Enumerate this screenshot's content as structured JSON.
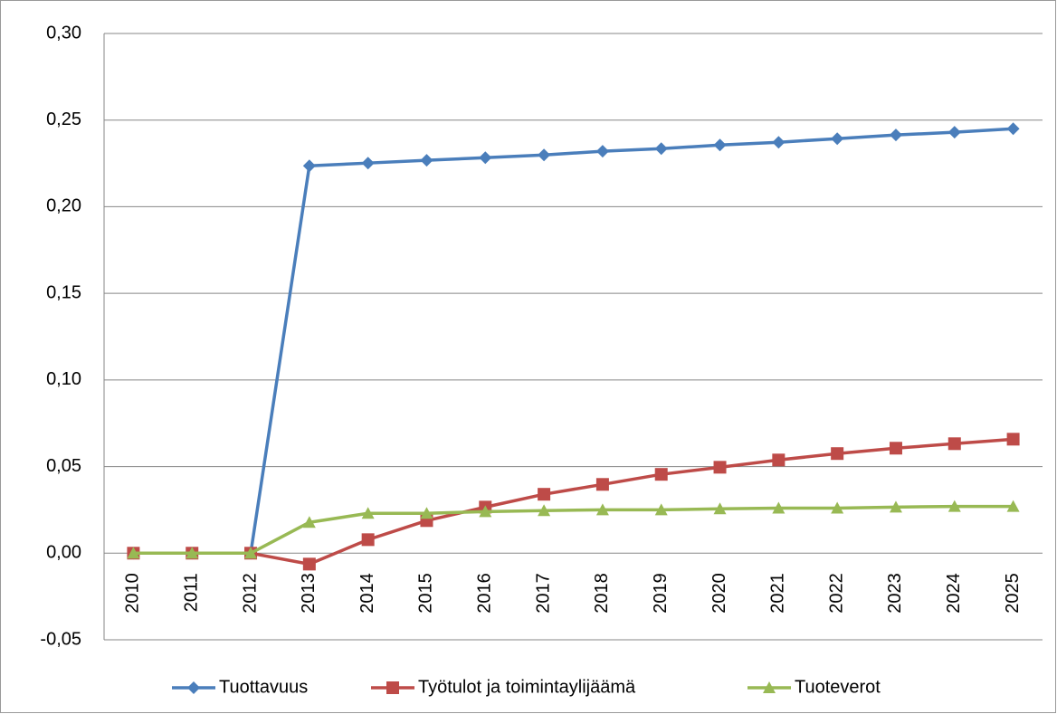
{
  "chart_data": {
    "type": "line",
    "categories": [
      "2010",
      "2011",
      "2012",
      "2013",
      "2014",
      "2015",
      "2016",
      "2017",
      "2018",
      "2019",
      "2020",
      "2021",
      "2022",
      "2023",
      "2024",
      "2025"
    ],
    "series": [
      {
        "name": "Tuottavuus",
        "color": "#4a7ebb",
        "marker": "diamond",
        "values": [
          0,
          0,
          0,
          0.2236,
          0.2252,
          0.2268,
          0.2283,
          0.2299,
          0.232,
          0.2335,
          0.2356,
          0.2372,
          0.2393,
          0.2414,
          0.243,
          0.245
        ]
      },
      {
        "name": "Työtulot ja toimintaylijäämä",
        "color": "#be4b48",
        "marker": "square",
        "values": [
          0,
          0,
          0,
          -0.0063,
          0.0078,
          0.0188,
          0.0266,
          0.034,
          0.0397,
          0.0455,
          0.0496,
          0.0538,
          0.0575,
          0.0606,
          0.0632,
          0.0658
        ]
      },
      {
        "name": "Tuoteverot",
        "color": "#98b954",
        "marker": "triangle",
        "values": [
          0,
          0,
          0,
          0.0178,
          0.023,
          0.023,
          0.024,
          0.0246,
          0.025,
          0.025,
          0.0256,
          0.026,
          0.026,
          0.0266,
          0.027,
          0.027
        ]
      }
    ],
    "ylim": [
      -0.05,
      0.3
    ],
    "yticks": [
      {
        "value": -0.05,
        "label": "-0,05"
      },
      {
        "value": 0,
        "label": "0,00"
      },
      {
        "value": 0.05,
        "label": "0,05"
      },
      {
        "value": 0.1,
        "label": "0,10"
      },
      {
        "value": 0.15,
        "label": "0,15"
      },
      {
        "value": 0.2,
        "label": "0,20"
      },
      {
        "value": 0.25,
        "label": "0,25"
      },
      {
        "value": 0.3,
        "label": "0,30"
      }
    ],
    "grid": true,
    "legend": "bottom"
  }
}
